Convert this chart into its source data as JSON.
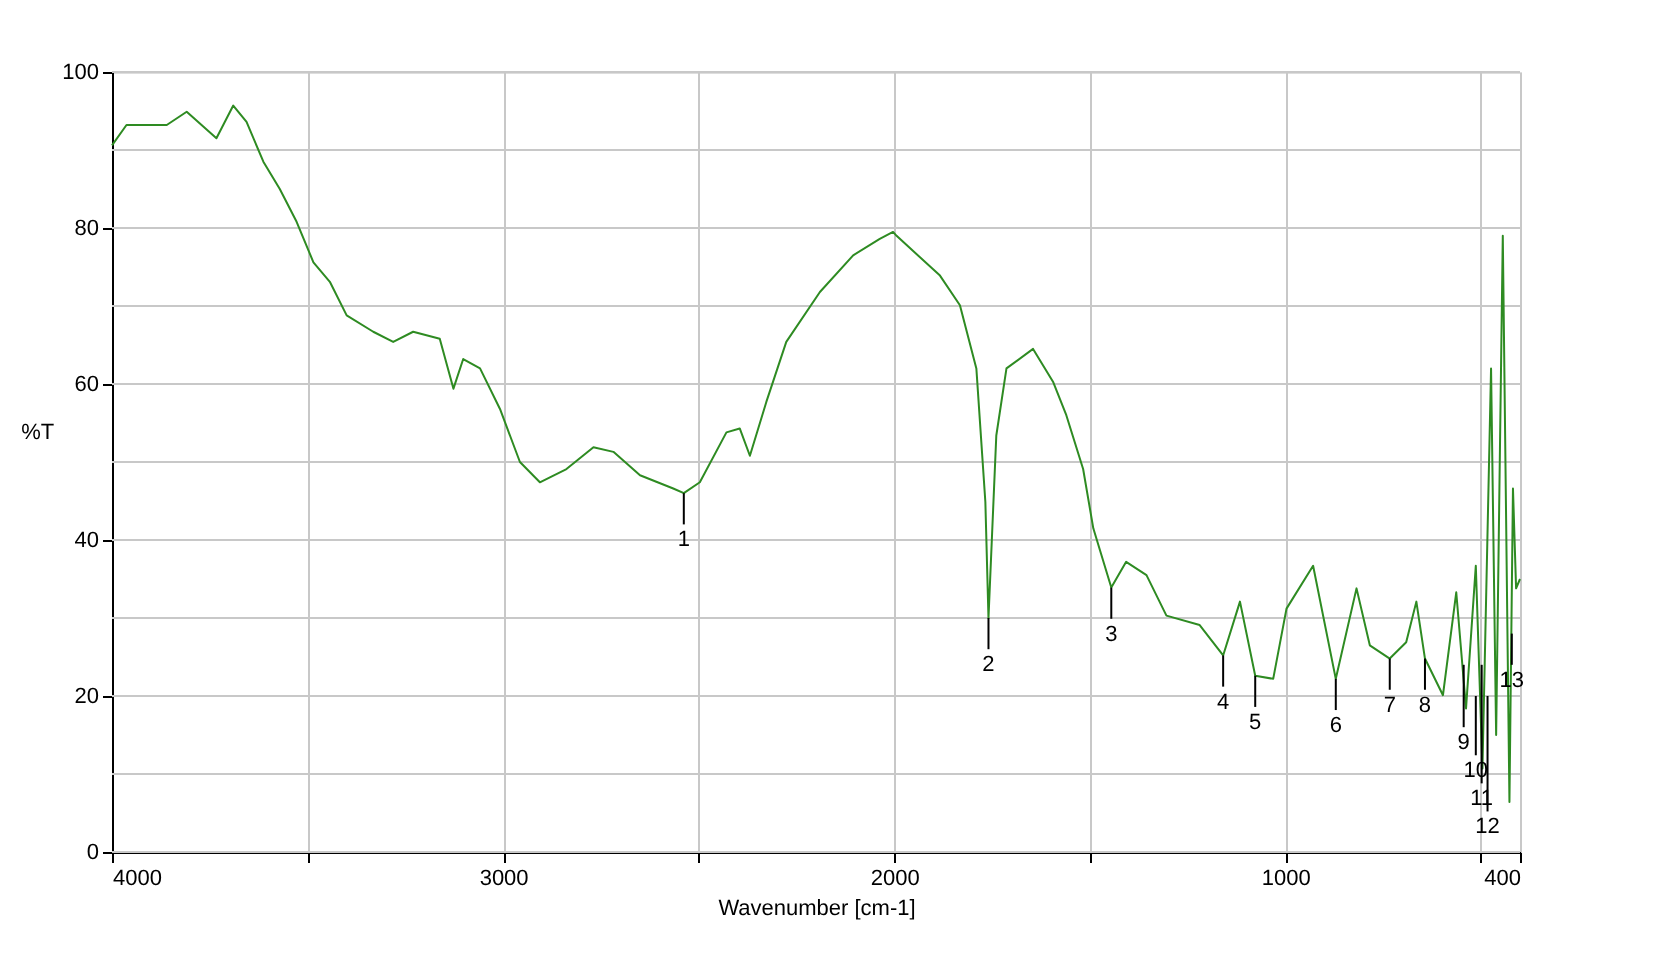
{
  "chart_data": {
    "type": "line",
    "xlabel": "Wavenumber [cm-1]",
    "ylabel": "%T",
    "xlim": [
      4000,
      400
    ],
    "ylim": [
      0,
      100
    ],
    "xticks": [
      4000,
      {
        "value": 3500,
        "label": null
      },
      3000,
      {
        "value": 2500,
        "label": null
      },
      2000,
      {
        "value": 1500,
        "label": null
      },
      1000,
      {
        "value": 500,
        "label": null
      },
      400
    ],
    "yticks": [
      0,
      {
        "value": 10,
        "label": null
      },
      20,
      {
        "value": 30,
        "label": null
      },
      40,
      {
        "value": 50,
        "label": null
      },
      60,
      {
        "value": 70,
        "label": null
      },
      80,
      {
        "value": 90,
        "label": null
      },
      100
    ],
    "grid": true,
    "line_style": "solid",
    "x": [
      4000,
      3963,
      3860,
      3809,
      3733,
      3690,
      3656,
      3613,
      3571,
      3528,
      3485,
      3443,
      3400,
      3332,
      3281,
      3230,
      3162,
      3127,
      3102,
      3059,
      3008,
      2957,
      2906,
      2838,
      2769,
      2718,
      2650,
      2565,
      2538,
      2497,
      2429,
      2395,
      2369,
      2327,
      2276,
      2190,
      2105,
      2037,
      2003,
      1994,
      1883,
      1832,
      1790,
      1767,
      1759,
      1739,
      1713,
      1645,
      1594,
      1560,
      1517,
      1491,
      1445,
      1407,
      1355,
      1304,
      1219,
      1159,
      1116,
      1077,
      1031,
      997,
      929,
      871,
      818,
      784,
      733,
      691,
      665,
      643,
      597,
      563,
      538,
      513,
      496,
      474,
      461,
      444,
      427,
      418,
      410,
      400
    ],
    "series": [
      {
        "color": "#2e8b22",
        "values": [
          90.6,
          93.2,
          93.2,
          94.9,
          91.5,
          95.7,
          93.6,
          88.5,
          85,
          80.8,
          75.6,
          73.1,
          68.8,
          66.7,
          65.4,
          66.7,
          65.8,
          59.4,
          63.2,
          62,
          56.8,
          50,
          47.4,
          49.1,
          51.9,
          51.3,
          48.3,
          46.6,
          46,
          47.4,
          53.8,
          54.3,
          50.8,
          57.7,
          65.4,
          71.8,
          76.5,
          78.6,
          79.5,
          79,
          73.9,
          70.1,
          62,
          44.9,
          30,
          53.4,
          62,
          64.5,
          60.3,
          56,
          49.1,
          41.5,
          33.9,
          37.2,
          35.5,
          30.3,
          29.1,
          25.2,
          32.1,
          22.6,
          22.2,
          31.2,
          36.7,
          22.2,
          33.8,
          26.5,
          24.8,
          26.9,
          32.1,
          24.8,
          20.1,
          33.3,
          18.4,
          36.7,
          10.7,
          62,
          15,
          79,
          6.4,
          46.6,
          33.8,
          35
        ]
      }
    ],
    "annotations": [
      {
        "text": "1",
        "x": 2538,
        "y": 46
      },
      {
        "text": "2",
        "x": 1759,
        "y": 30
      },
      {
        "text": "3",
        "x": 1445,
        "y": 33.9
      },
      {
        "text": "4",
        "x": 1159,
        "y": 25.2
      },
      {
        "text": "5",
        "x": 1077,
        "y": 22.6
      },
      {
        "text": "6",
        "x": 871,
        "y": 22.2
      },
      {
        "text": "7",
        "x": 733,
        "y": 24.8
      },
      {
        "text": "8",
        "x": 643,
        "y": 24.8
      },
      {
        "text": "9",
        "x": 544,
        "y": 24
      },
      {
        "text": "10",
        "x": 513,
        "y": 20
      },
      {
        "text": "11",
        "x": 498,
        "y": 24
      },
      {
        "text": "12",
        "x": 483,
        "y": 20
      },
      {
        "text": "13",
        "x": 421,
        "y": 28
      }
    ]
  }
}
